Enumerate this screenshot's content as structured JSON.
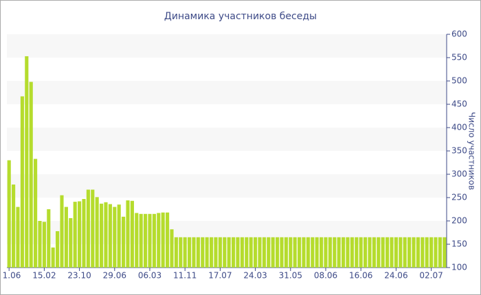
{
  "chart_data": {
    "type": "bar",
    "title": "Динамика участников беседы",
    "y_label": "Число участников",
    "categories": [
      "1.06",
      null,
      null,
      null,
      null,
      null,
      null,
      null,
      "15.02",
      null,
      null,
      null,
      null,
      null,
      null,
      null,
      "23.10",
      null,
      null,
      null,
      null,
      null,
      null,
      null,
      "29.06",
      null,
      null,
      null,
      null,
      null,
      null,
      null,
      "06.03",
      null,
      null,
      null,
      null,
      null,
      null,
      null,
      "11.11",
      null,
      null,
      null,
      null,
      null,
      null,
      null,
      "17.07",
      null,
      null,
      null,
      null,
      null,
      null,
      null,
      "24.03",
      null,
      null,
      null,
      null,
      null,
      null,
      null,
      "31.05",
      null,
      null,
      null,
      null,
      null,
      null,
      null,
      "08.06",
      null,
      null,
      null,
      null,
      null,
      null,
      null,
      "16.06",
      null,
      null,
      null,
      null,
      null,
      null,
      null,
      "24.06",
      null,
      null,
      null,
      null,
      null,
      null,
      null,
      "02.07",
      null,
      null,
      null
    ],
    "values": [
      330,
      278,
      230,
      467,
      553,
      498,
      333,
      200,
      198,
      225,
      143,
      178,
      255,
      230,
      206,
      241,
      242,
      247,
      267,
      267,
      251,
      237,
      240,
      236,
      230,
      235,
      209,
      244,
      243,
      217,
      215,
      215,
      215,
      215,
      217,
      218,
      218,
      182,
      165,
      165,
      165,
      165,
      165,
      165,
      165,
      165,
      165,
      165,
      165,
      165,
      165,
      165,
      165,
      165,
      165,
      165,
      165,
      165,
      165,
      165,
      165,
      165,
      165,
      165,
      165,
      165,
      165,
      165,
      165,
      165,
      165,
      165,
      165,
      165,
      165,
      165,
      165,
      165,
      165,
      165,
      165,
      165,
      165,
      165,
      165,
      165,
      165,
      165,
      165,
      165,
      165,
      165,
      165,
      165,
      165,
      165,
      165,
      165,
      165,
      165
    ],
    "color": "#b5dc2d",
    "ylim": [
      100,
      600
    ],
    "yticks": [
      100,
      150,
      200,
      250,
      300,
      350,
      400,
      450,
      500,
      550,
      600
    ],
    "grid": "bands",
    "y_axis_side": "right"
  }
}
